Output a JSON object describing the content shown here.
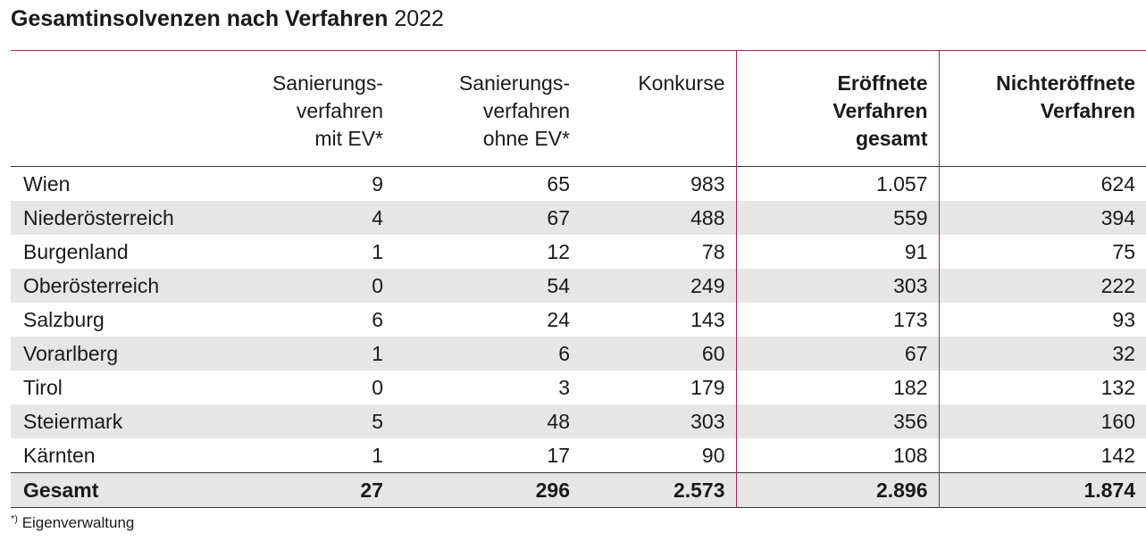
{
  "title": {
    "bold": "Gesamtinsolvenzen nach Verfahren",
    "year": "2022"
  },
  "headers": [
    "",
    [
      "Sanierungs-",
      "verfahren",
      "mit EV*"
    ],
    [
      "Sanierungs-",
      "verfahren",
      "ohne EV*"
    ],
    [
      "Konkurse"
    ],
    [
      "Eröffnete",
      "Verfahren",
      "gesamt"
    ],
    [
      "Nichteröffnete",
      "Verfahren"
    ]
  ],
  "rows": [
    [
      "Wien",
      "9",
      "65",
      "983",
      "1.057",
      "624"
    ],
    [
      "Niederösterreich",
      "4",
      "67",
      "488",
      "559",
      "394"
    ],
    [
      "Burgenland",
      "1",
      "12",
      "78",
      "91",
      "75"
    ],
    [
      "Oberösterreich",
      "0",
      "54",
      "249",
      "303",
      "222"
    ],
    [
      "Salzburg",
      "6",
      "24",
      "143",
      "173",
      "93"
    ],
    [
      "Vorarlberg",
      "1",
      "6",
      "60",
      "67",
      "32"
    ],
    [
      "Tirol",
      "0",
      "3",
      "179",
      "182",
      "132"
    ],
    [
      "Steiermark",
      "5",
      "48",
      "303",
      "356",
      "160"
    ],
    [
      "Kärnten",
      "1",
      "17",
      "90",
      "108",
      "142"
    ]
  ],
  "total": [
    "Gesamt",
    "27",
    "296",
    "2.573",
    "2.896",
    "1.874"
  ],
  "footnote": {
    "mark": "*)",
    "text": "Eigenverwaltung"
  },
  "colors": {
    "accent": "#a8235a",
    "stripe": "#e6e6e6"
  },
  "chart_data": {
    "type": "table",
    "title": "Gesamtinsolvenzen nach Verfahren 2022",
    "columns": [
      "Sanierungsverfahren mit EV*",
      "Sanierungsverfahren ohne EV*",
      "Konkurse",
      "Eröffnete Verfahren gesamt",
      "Nichteröffnete Verfahren"
    ],
    "categories": [
      "Wien",
      "Niederösterreich",
      "Burgenland",
      "Oberösterreich",
      "Salzburg",
      "Vorarlberg",
      "Tirol",
      "Steiermark",
      "Kärnten",
      "Gesamt"
    ],
    "series": [
      {
        "name": "Sanierungsverfahren mit EV*",
        "values": [
          9,
          4,
          1,
          0,
          6,
          1,
          0,
          5,
          1,
          27
        ]
      },
      {
        "name": "Sanierungsverfahren ohne EV*",
        "values": [
          65,
          67,
          12,
          54,
          24,
          6,
          3,
          48,
          17,
          296
        ]
      },
      {
        "name": "Konkurse",
        "values": [
          983,
          488,
          78,
          249,
          143,
          60,
          179,
          303,
          90,
          2573
        ]
      },
      {
        "name": "Eröffnete Verfahren gesamt",
        "values": [
          1057,
          559,
          91,
          303,
          173,
          67,
          182,
          356,
          108,
          2896
        ]
      },
      {
        "name": "Nichteröffnete Verfahren",
        "values": [
          624,
          394,
          75,
          222,
          93,
          32,
          132,
          160,
          142,
          1874
        ]
      }
    ]
  }
}
